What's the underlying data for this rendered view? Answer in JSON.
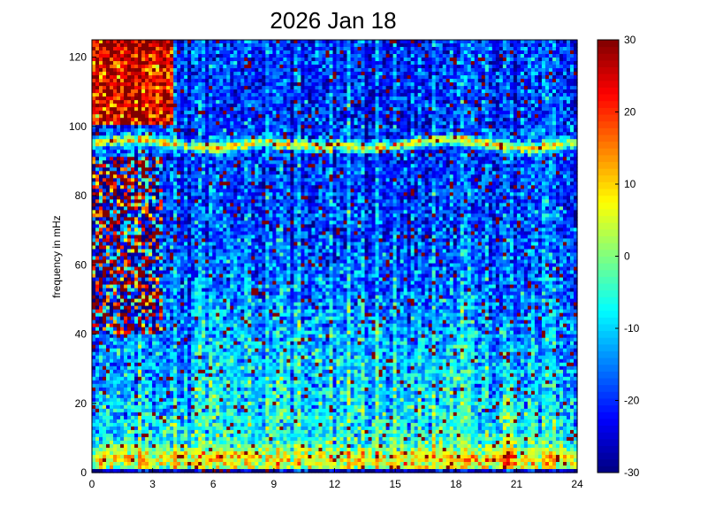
{
  "chart_data": {
    "type": "heatmap",
    "title": "2026 Jan 18",
    "xlabel": "",
    "ylabel": "frequency in mHz",
    "x_ticks": [
      "0",
      "3",
      "6",
      "9",
      "12",
      "15",
      "18",
      "21",
      "24"
    ],
    "y_ticks": [
      "0",
      "20",
      "40",
      "60",
      "80",
      "100",
      "120"
    ],
    "xlim": [
      0,
      24
    ],
    "ylim": [
      0,
      125
    ],
    "colorbar": {
      "min": -30,
      "max": 30,
      "ticks": [
        "30",
        "20",
        "10",
        "0",
        "-10",
        "-20",
        "-30"
      ],
      "colormap": "jet"
    },
    "features": {
      "band_center_mhz": 95,
      "band_level": 5,
      "low_freq_peak_mhz": 4,
      "low_freq_level": 15,
      "event_time_h": 20.7
    },
    "grid": false
  }
}
